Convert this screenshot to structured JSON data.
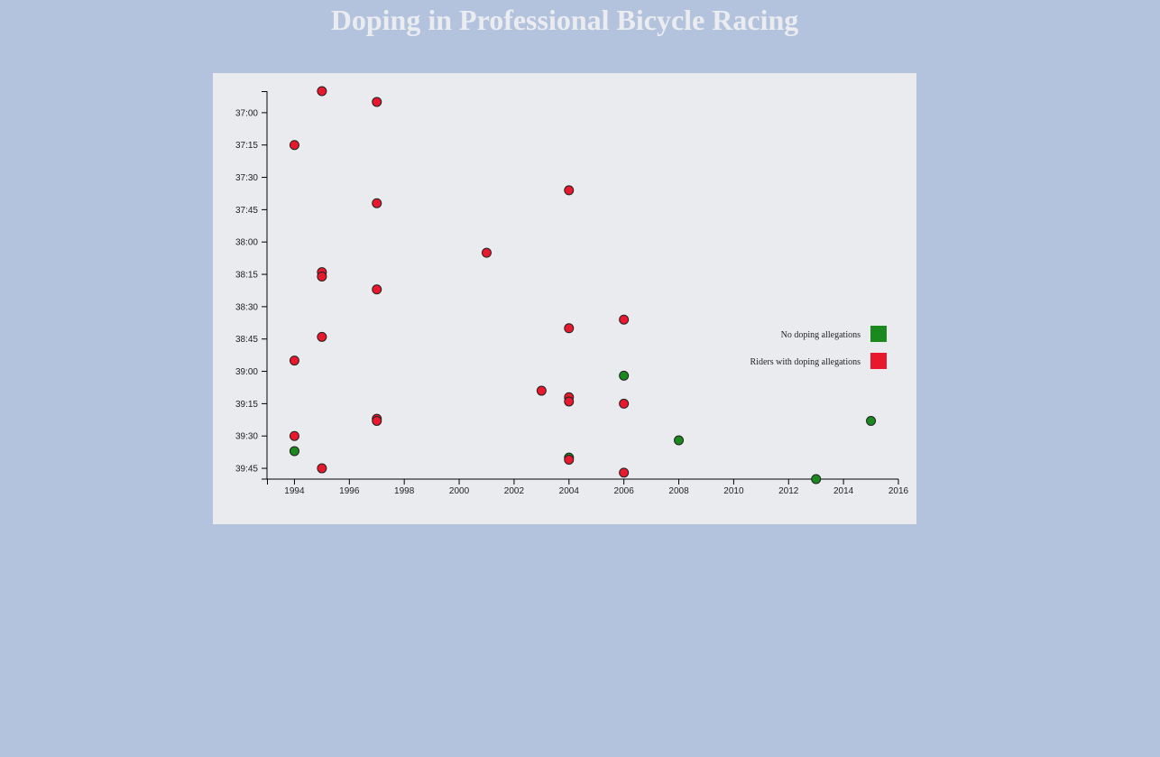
{
  "page": {
    "title": "Doping in Professional Bicycle Racing"
  },
  "colors": {
    "background": "#b3c3de",
    "panel": "#e9ebef",
    "title": "#eaecf0",
    "no_doping": "#1a8a1f",
    "doping": "#e8192c"
  },
  "chart_data": {
    "type": "scatter",
    "title": "Doping in Professional Bicycle Racing",
    "xlabel": "",
    "ylabel": "",
    "x_ticks": [
      "1994",
      "1996",
      "1998",
      "2000",
      "2002",
      "2004",
      "2006",
      "2008",
      "2010",
      "2012",
      "2014",
      "2016"
    ],
    "y_ticks": [
      "37:00",
      "37:15",
      "37:30",
      "37:45",
      "38:00",
      "38:15",
      "38:30",
      "38:45",
      "39:00",
      "39:15",
      "39:30",
      "39:45"
    ],
    "xlim": [
      1993,
      2016
    ],
    "ylim_seconds": [
      2210,
      2390
    ],
    "y_inverted": true,
    "grid": false,
    "legend_position": "right",
    "series": [
      {
        "name": "No doping allegations",
        "color_key": "no_doping",
        "points": [
          {
            "x": 1994,
            "y": "39:37"
          },
          {
            "x": 2004,
            "y": "39:40"
          },
          {
            "x": 2006,
            "y": "39:02"
          },
          {
            "x": 2008,
            "y": "39:32"
          },
          {
            "x": 2013,
            "y": "39:50"
          },
          {
            "x": 2015,
            "y": "39:23"
          }
        ]
      },
      {
        "name": "Riders with doping allegations",
        "color_key": "doping",
        "points": [
          {
            "x": 1995,
            "y": "36:50"
          },
          {
            "x": 1997,
            "y": "36:55"
          },
          {
            "x": 1994,
            "y": "37:15"
          },
          {
            "x": 2004,
            "y": "37:36"
          },
          {
            "x": 1997,
            "y": "37:42"
          },
          {
            "x": 2001,
            "y": "38:05"
          },
          {
            "x": 1995,
            "y": "38:14"
          },
          {
            "x": 1995,
            "y": "38:16"
          },
          {
            "x": 1997,
            "y": "38:22"
          },
          {
            "x": 2006,
            "y": "38:36"
          },
          {
            "x": 2004,
            "y": "38:40"
          },
          {
            "x": 1995,
            "y": "38:44"
          },
          {
            "x": 1994,
            "y": "38:55"
          },
          {
            "x": 2003,
            "y": "39:09"
          },
          {
            "x": 2004,
            "y": "39:12"
          },
          {
            "x": 2004,
            "y": "39:14"
          },
          {
            "x": 2006,
            "y": "39:15"
          },
          {
            "x": 1997,
            "y": "39:22"
          },
          {
            "x": 1997,
            "y": "39:23"
          },
          {
            "x": 1994,
            "y": "39:30"
          },
          {
            "x": 2004,
            "y": "39:41"
          },
          {
            "x": 1995,
            "y": "39:45"
          },
          {
            "x": 2006,
            "y": "39:47"
          }
        ]
      }
    ]
  }
}
